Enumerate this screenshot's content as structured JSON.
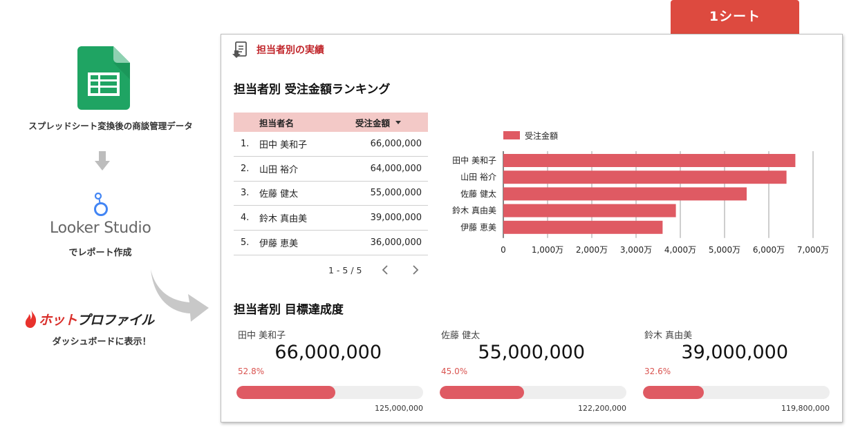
{
  "flow": {
    "sheets_caption": "スプレッドシート変換後の商談管理データ",
    "looker_name": "Looker Studio",
    "looker_caption": "でレポート作成",
    "hotprofile_logo_hot": "ホット",
    "hotprofile_logo_rest": "プロファイル",
    "hotprofile_caption": "ダッシュボードに表示！"
  },
  "sheet_tab": {
    "label": "1シート"
  },
  "report": {
    "header_title": "担当者別の実績",
    "ranking_title": "担当者別 受注金額ランキング",
    "goal_title": "担当者別 目標達成度",
    "table": {
      "col_name": "担当者名",
      "col_amount": "受注金額",
      "rows": [
        {
          "idx": "1.",
          "name": "田中 美和子",
          "amount": "66,000,000"
        },
        {
          "idx": "2.",
          "name": "山田 裕介",
          "amount": "64,000,000"
        },
        {
          "idx": "3.",
          "name": "佐藤 健太",
          "amount": "55,000,000"
        },
        {
          "idx": "4.",
          "name": "鈴木 真由美",
          "amount": "39,000,000"
        },
        {
          "idx": "5.",
          "name": "伊藤 恵美",
          "amount": "36,000,000"
        }
      ],
      "pager_text": "1 - 5 / 5"
    },
    "goals": [
      {
        "name": "田中 美和子",
        "value": "66,000,000",
        "pct_label": "52.8%",
        "pct": 52.8,
        "target": "125,000,000"
      },
      {
        "name": "佐藤 健太",
        "value": "55,000,000",
        "pct_label": "45.0%",
        "pct": 45.0,
        "target": "122,200,000"
      },
      {
        "name": "鈴木 真由美",
        "value": "39,000,000",
        "pct_label": "32.6%",
        "pct": 32.6,
        "target": "119,800,000"
      }
    ]
  },
  "colors": {
    "accent_red": "#dd4a3f",
    "bar_red": "#df5a63",
    "table_header_pink": "#f3c9c7",
    "title_red": "#c0252a"
  },
  "chart_data": {
    "type": "bar",
    "orientation": "horizontal",
    "categories": [
      "田中 美和子",
      "山田 裕介",
      "佐藤 健太",
      "鈴木 真由美",
      "伊藤 恵美"
    ],
    "series": [
      {
        "name": "受注金額",
        "values": [
          66000000,
          64000000,
          55000000,
          39000000,
          36000000
        ]
      }
    ],
    "x_ticks": [
      0,
      10000000,
      20000000,
      30000000,
      40000000,
      50000000,
      60000000,
      70000000
    ],
    "x_tick_labels": [
      "0",
      "1,000万",
      "2,000万",
      "3,000万",
      "4,000万",
      "5,000万",
      "6,000万",
      "7,000万"
    ],
    "xlim": [
      0,
      70000000
    ],
    "grid": "vertical",
    "legend": "top-left"
  }
}
